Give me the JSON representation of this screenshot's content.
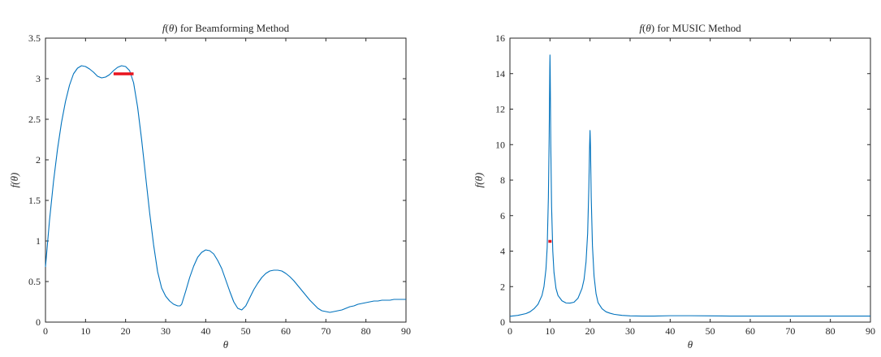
{
  "chart_data": [
    {
      "type": "line",
      "title_parts": {
        "fn": "f",
        "var": "θ",
        "suffix": " for Beamforming Method"
      },
      "xlabel": "θ",
      "ylabel": "f(θ)",
      "xlim": [
        0,
        90
      ],
      "ylim": [
        0,
        3.5
      ],
      "x_ticks": [
        0,
        10,
        20,
        30,
        40,
        50,
        60,
        70,
        80,
        90
      ],
      "y_ticks": [
        0,
        0.5,
        1,
        1.5,
        2,
        2.5,
        3,
        3.5
      ],
      "grid": false,
      "line_color": "#0072BD",
      "series": [
        {
          "x": [
            0,
            1,
            2,
            3,
            4,
            5,
            6,
            7,
            8,
            9,
            10,
            11,
            12,
            13,
            14,
            15,
            16,
            17,
            18,
            19,
            20,
            21,
            22,
            23,
            24,
            25,
            26,
            27,
            28,
            29,
            30,
            31,
            32,
            33,
            33.6,
            34,
            35,
            36,
            37,
            38,
            39,
            40,
            41,
            42,
            43,
            44,
            45,
            46,
            47,
            48,
            49,
            50,
            51,
            52,
            53,
            54,
            55,
            56,
            57,
            58,
            59,
            60,
            61,
            62,
            63,
            64,
            65,
            66,
            67,
            68,
            69,
            70,
            71,
            72,
            73,
            74,
            75,
            76,
            77,
            78,
            79,
            80,
            81,
            82,
            83,
            84,
            85,
            86,
            87,
            88,
            89,
            90
          ],
          "y": [
            0.68,
            1.25,
            1.73,
            2.13,
            2.46,
            2.72,
            2.92,
            3.06,
            3.13,
            3.16,
            3.15,
            3.12,
            3.08,
            3.03,
            3.01,
            3.02,
            3.05,
            3.1,
            3.14,
            3.16,
            3.15,
            3.1,
            2.95,
            2.65,
            2.25,
            1.8,
            1.35,
            0.95,
            0.62,
            0.42,
            0.32,
            0.26,
            0.22,
            0.2,
            0.2,
            0.22,
            0.38,
            0.55,
            0.69,
            0.8,
            0.86,
            0.89,
            0.88,
            0.84,
            0.76,
            0.66,
            0.52,
            0.38,
            0.25,
            0.17,
            0.15,
            0.2,
            0.3,
            0.4,
            0.48,
            0.55,
            0.6,
            0.63,
            0.64,
            0.64,
            0.63,
            0.6,
            0.56,
            0.51,
            0.45,
            0.39,
            0.33,
            0.27,
            0.22,
            0.17,
            0.14,
            0.13,
            0.12,
            0.13,
            0.14,
            0.15,
            0.17,
            0.19,
            0.2,
            0.22,
            0.23,
            0.24,
            0.25,
            0.26,
            0.26,
            0.27,
            0.27,
            0.27,
            0.28,
            0.28,
            0.28,
            0.28
          ]
        }
      ],
      "markers": [
        {
          "type": "hline-segment",
          "x": [
            17,
            22
          ],
          "y": 3.06,
          "color": "#E8141E"
        }
      ]
    },
    {
      "type": "line",
      "title_parts": {
        "fn": "f",
        "var": "θ",
        "suffix": " for MUSIC Method"
      },
      "xlabel": "θ",
      "ylabel": "f(θ)",
      "xlim": [
        0,
        90
      ],
      "ylim": [
        0,
        16
      ],
      "x_ticks": [
        0,
        10,
        20,
        30,
        40,
        50,
        60,
        70,
        80,
        90
      ],
      "y_ticks": [
        0,
        2,
        4,
        6,
        8,
        10,
        12,
        14,
        16
      ],
      "grid": false,
      "line_color": "#0072BD",
      "series": [
        {
          "x": [
            0,
            2,
            4,
            5,
            6,
            7,
            8,
            8.5,
            9,
            9.3,
            9.6,
            9.8,
            9.95,
            10,
            10.05,
            10.2,
            10.4,
            10.7,
            11,
            11.5,
            12,
            13,
            14,
            15,
            16,
            17,
            18,
            18.5,
            19,
            19.4,
            19.7,
            19.9,
            20,
            20.1,
            20.3,
            20.6,
            21,
            21.5,
            22,
            23,
            24,
            25,
            26,
            28,
            30,
            33,
            36,
            40,
            45,
            50,
            55,
            60,
            65,
            70,
            75,
            80,
            85,
            90
          ],
          "y": [
            0.33,
            0.38,
            0.48,
            0.58,
            0.75,
            1.0,
            1.5,
            2.0,
            3.0,
            4.2,
            7.0,
            10.5,
            14.2,
            15.05,
            14.2,
            10.0,
            6.5,
            4.0,
            2.8,
            1.9,
            1.5,
            1.2,
            1.08,
            1.07,
            1.12,
            1.35,
            1.9,
            2.4,
            3.4,
            5.0,
            7.6,
            10.0,
            10.8,
            10.0,
            7.0,
            4.3,
            2.6,
            1.6,
            1.1,
            0.75,
            0.58,
            0.5,
            0.44,
            0.38,
            0.35,
            0.34,
            0.34,
            0.36,
            0.36,
            0.35,
            0.34,
            0.34,
            0.34,
            0.34,
            0.34,
            0.34,
            0.34,
            0.34
          ]
        }
      ],
      "markers": [
        {
          "type": "hline-segment",
          "x": [
            9.6,
            10.4
          ],
          "y": 4.55,
          "color": "#E8141E"
        }
      ]
    }
  ]
}
